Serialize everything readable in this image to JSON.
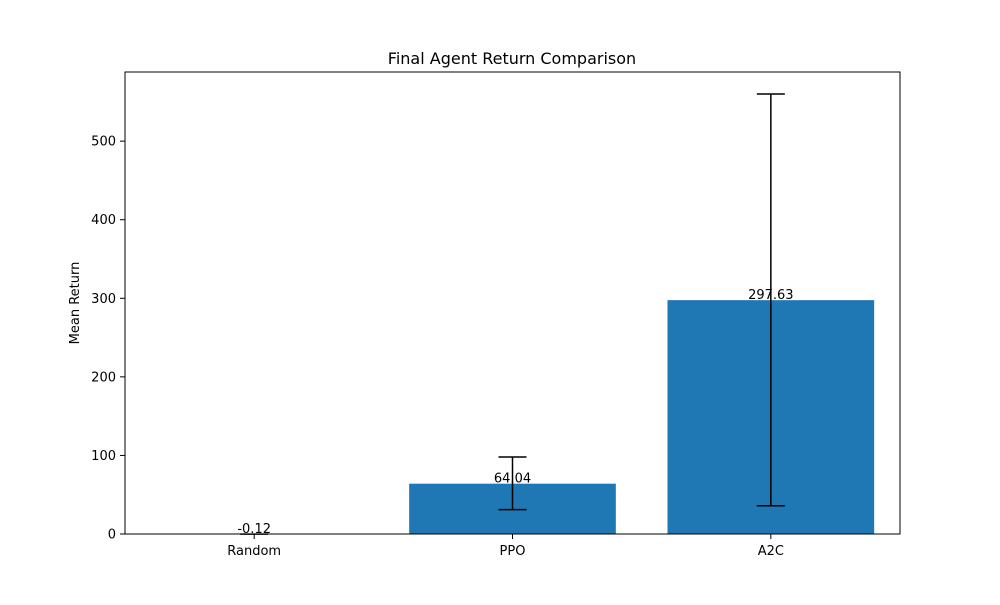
{
  "chart_data": {
    "type": "bar",
    "title": "Final Agent Return Comparison",
    "xlabel": "",
    "ylabel": "Mean Return",
    "categories": [
      "Random",
      "PPO",
      "A2C"
    ],
    "values": [
      -0.12,
      64.04,
      297.63
    ],
    "value_labels": [
      "-0.12",
      "64.04",
      "297.63"
    ],
    "error_lower": [
      -0.12,
      31,
      36
    ],
    "error_upper": [
      -0.12,
      98,
      560
    ],
    "ylim": [
      0,
      588
    ],
    "yticks": [
      0,
      100,
      200,
      300,
      400,
      500
    ],
    "grid": false,
    "legend": "none",
    "bar_color": "#1f77b4",
    "errorbar_color": "#000000"
  }
}
